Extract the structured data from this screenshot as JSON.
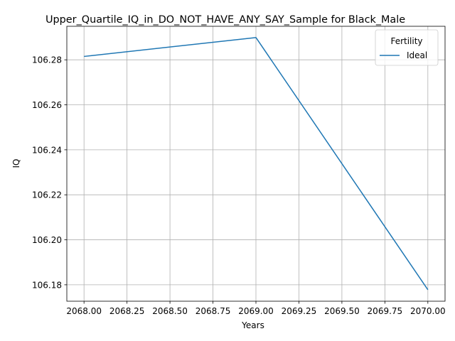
{
  "chart_data": {
    "type": "line",
    "title": "Upper_Quartile_IQ_in_DO_NOT_HAVE_ANY_SAY_Sample for Black_Male",
    "xlabel": "Years",
    "ylabel": "IQ",
    "xlim": [
      2067.9,
      2070.1
    ],
    "ylim": [
      106.1727,
      106.2949
    ],
    "x_ticks": [
      2068.0,
      2068.25,
      2068.5,
      2068.75,
      2069.0,
      2069.25,
      2069.5,
      2069.75,
      2070.0
    ],
    "x_tick_labels": [
      "2068.00",
      "2068.25",
      "2068.50",
      "2068.75",
      "2069.00",
      "2069.25",
      "2069.50",
      "2069.75",
      "2070.00"
    ],
    "y_ticks": [
      106.18,
      106.2,
      106.22,
      106.24,
      106.26,
      106.28
    ],
    "y_tick_labels": [
      "106.18",
      "106.20",
      "106.22",
      "106.24",
      "106.26",
      "106.28"
    ],
    "grid": true,
    "legend": {
      "title": "Fertility",
      "placement": "top-right"
    },
    "series": [
      {
        "name": "Ideal",
        "color": "#1f77b4",
        "x": [
          2068,
          2069,
          2070
        ],
        "y": [
          106.2815,
          106.2899,
          106.1778
        ]
      }
    ]
  }
}
